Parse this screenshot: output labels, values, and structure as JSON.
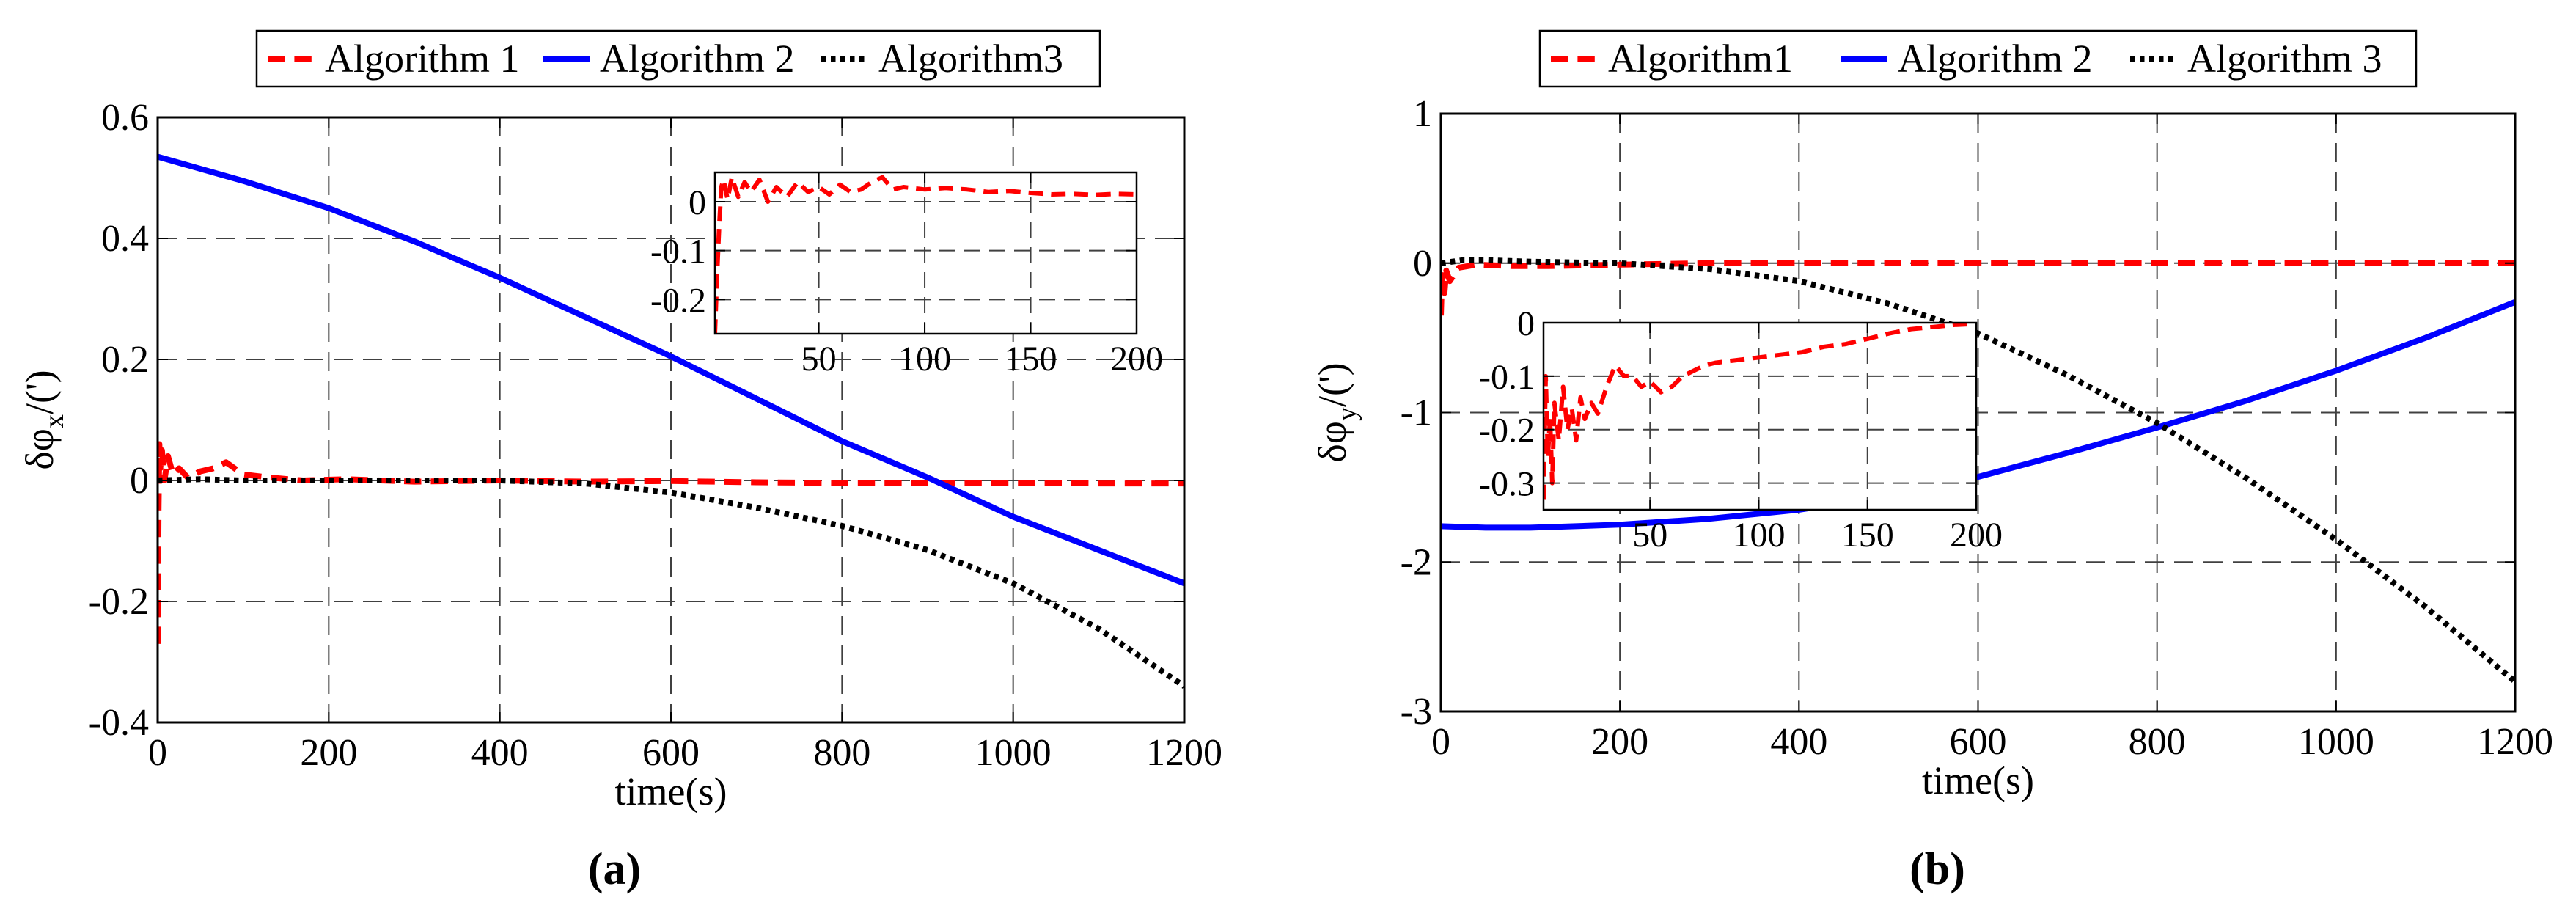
{
  "colors": {
    "alg1": "#ff0000",
    "alg2": "#0000ff",
    "alg3": "#000000",
    "grid": "#404040"
  },
  "panels": [
    {
      "label": "(a)"
    },
    {
      "label": "(b)"
    }
  ],
  "chart_data": [
    {
      "type": "line",
      "panel": "(a)",
      "title": "",
      "xlabel": "time(s)",
      "ylabel_main": "δφ",
      "ylabel_sub": "x",
      "ylabel_tail": "/(')",
      "xlim": [
        0,
        1200
      ],
      "ylim": [
        -0.4,
        0.6
      ],
      "xticks": [
        0,
        200,
        400,
        600,
        800,
        1000,
        1200
      ],
      "xtick_labels": [
        "0",
        "200",
        "400",
        "600",
        "800",
        "1000",
        "1200"
      ],
      "yticks": [
        -0.4,
        -0.2,
        0,
        0.2,
        0.4,
        0.6
      ],
      "ytick_labels": [
        "-0.4",
        "-0.2",
        "0",
        "0.2",
        "0.4",
        "0.6"
      ],
      "grid": true,
      "legend_position": "top-center",
      "series": [
        {
          "name": "Algorithm 1",
          "style": "dashed",
          "color": "#ff0000",
          "x": [
            0,
            1,
            2,
            3,
            5,
            8,
            12,
            18,
            25,
            35,
            50,
            65,
            80,
            100,
            130,
            170,
            220,
            300,
            400,
            500,
            600,
            700,
            800,
            900,
            1000,
            1100,
            1200
          ],
          "y": [
            -0.27,
            -0.05,
            0.06,
            0.02,
            0.05,
            0.0,
            0.04,
            0.01,
            0.02,
            0.005,
            0.015,
            0.02,
            0.03,
            0.01,
            0.005,
            0.0,
            0.002,
            -0.002,
            0.0,
            -0.002,
            -0.001,
            -0.003,
            -0.004,
            -0.004,
            -0.004,
            -0.005,
            -0.005
          ]
        },
        {
          "name": "Algorithm 2",
          "style": "solid",
          "color": "#0000ff",
          "x": [
            0,
            100,
            200,
            300,
            400,
            500,
            600,
            700,
            800,
            900,
            1000,
            1100,
            1200
          ],
          "y": [
            0.535,
            0.495,
            0.45,
            0.395,
            0.335,
            0.27,
            0.205,
            0.135,
            0.065,
            0.005,
            -0.06,
            -0.115,
            -0.17
          ]
        },
        {
          "name": "Algorithm3",
          "style": "dotted",
          "color": "#000000",
          "x": [
            0,
            50,
            100,
            200,
            300,
            400,
            500,
            600,
            700,
            800,
            900,
            1000,
            1100,
            1200
          ],
          "y": [
            0.0,
            0.002,
            0.0,
            0.0,
            0.0,
            0.0,
            -0.005,
            -0.02,
            -0.045,
            -0.075,
            -0.115,
            -0.17,
            -0.245,
            -0.34
          ]
        }
      ],
      "inset": {
        "xlim": [
          1,
          200
        ],
        "ylim": [
          -0.27,
          0.06
        ],
        "xticks": [
          50,
          100,
          150,
          200
        ],
        "xtick_labels": [
          "50",
          "100",
          "150",
          "200"
        ],
        "yticks": [
          0,
          -0.1,
          -0.2
        ],
        "ytick_labels": [
          "0",
          "-0.1",
          "-0.2"
        ],
        "series": [
          {
            "name": "Algorithm 1",
            "style": "dashed",
            "color": "#ff0000",
            "x": [
              1,
              2,
              3,
              4,
              5,
              7,
              9,
              12,
              15,
              18,
              22,
              26,
              30,
              35,
              40,
              45,
              50,
              55,
              60,
              65,
              70,
              75,
              80,
              85,
              90,
              100,
              110,
              120,
              130,
              140,
              150,
              160,
              170,
              180,
              190,
              200
            ],
            "y": [
              -0.27,
              -0.15,
              -0.05,
              0.03,
              0.045,
              0.005,
              0.05,
              0.01,
              0.04,
              0.02,
              0.045,
              0.0,
              0.03,
              0.01,
              0.04,
              0.02,
              0.03,
              0.015,
              0.035,
              0.02,
              0.025,
              0.04,
              0.05,
              0.025,
              0.03,
              0.025,
              0.028,
              0.025,
              0.02,
              0.022,
              0.018,
              0.015,
              0.016,
              0.014,
              0.016,
              0.015
            ]
          }
        ]
      }
    },
    {
      "type": "line",
      "panel": "(b)",
      "title": "",
      "xlabel": "time(s)",
      "ylabel_main": "δφ",
      "ylabel_sub": "y",
      "ylabel_tail": "/(')",
      "xlim": [
        0,
        1200
      ],
      "ylim": [
        -3,
        1
      ],
      "xticks": [
        0,
        200,
        400,
        600,
        800,
        1000,
        1200
      ],
      "xtick_labels": [
        "0",
        "200",
        "400",
        "600",
        "800",
        "1000",
        "1200"
      ],
      "yticks": [
        -3,
        -2,
        -1,
        0,
        1
      ],
      "ytick_labels": [
        "-3",
        "-2",
        "-1",
        "0",
        "1"
      ],
      "grid": true,
      "legend_position": "top-center",
      "series": [
        {
          "name": "Algorithm1",
          "style": "dashed",
          "color": "#ff0000",
          "x": [
            0,
            1,
            2,
            4,
            6,
            10,
            20,
            40,
            80,
            120,
            200,
            300,
            400,
            600,
            800,
            1000,
            1200
          ],
          "y": [
            -0.35,
            -0.15,
            -0.08,
            -0.2,
            -0.05,
            -0.12,
            -0.03,
            -0.01,
            -0.02,
            -0.02,
            -0.01,
            0.0,
            0.0,
            0.0,
            0.0,
            0.0,
            0.0
          ]
        },
        {
          "name": "Algorithm 2",
          "style": "solid",
          "color": "#0000ff",
          "x": [
            0,
            50,
            100,
            200,
            300,
            400,
            500,
            600,
            700,
            800,
            900,
            1000,
            1100,
            1200
          ],
          "y": [
            -1.76,
            -1.77,
            -1.77,
            -1.75,
            -1.71,
            -1.65,
            -1.56,
            -1.43,
            -1.27,
            -1.1,
            -0.92,
            -0.72,
            -0.5,
            -0.26
          ]
        },
        {
          "name": "Algorithm 3",
          "style": "dotted",
          "color": "#000000",
          "x": [
            0,
            25,
            50,
            100,
            200,
            300,
            400,
            500,
            600,
            700,
            800,
            900,
            1000,
            1100,
            1200
          ],
          "y": [
            0.0,
            0.02,
            0.02,
            0.01,
            0.0,
            -0.04,
            -0.12,
            -0.27,
            -0.47,
            -0.75,
            -1.07,
            -1.44,
            -1.85,
            -2.3,
            -2.8
          ]
        }
      ],
      "inset": {
        "xlim": [
          1,
          200
        ],
        "ylim": [
          -0.35,
          0.0
        ],
        "xticks": [
          50,
          100,
          150,
          200
        ],
        "xtick_labels": [
          "50",
          "100",
          "150",
          "200"
        ],
        "yticks": [
          0,
          -0.1,
          -0.2,
          -0.3
        ],
        "ytick_labels": [
          "0",
          "-0.1",
          "-0.2",
          "-0.3"
        ],
        "series": [
          {
            "name": "Algorithm1",
            "style": "dashed",
            "color": "#ff0000",
            "x": [
              1,
              2,
              3,
              4,
              5,
              6,
              8,
              10,
              12,
              14,
              16,
              18,
              20,
              23,
              26,
              30,
              34,
              38,
              42,
              46,
              50,
              55,
              60,
              65,
              70,
              75,
              80,
              90,
              100,
              110,
              120,
              130,
              140,
              150,
              160,
              170,
              180,
              190,
              200
            ],
            "y": [
              -0.33,
              -0.1,
              -0.25,
              -0.18,
              -0.3,
              -0.15,
              -0.22,
              -0.12,
              -0.2,
              -0.16,
              -0.22,
              -0.14,
              -0.18,
              -0.15,
              -0.17,
              -0.12,
              -0.08,
              -0.1,
              -0.1,
              -0.12,
              -0.11,
              -0.13,
              -0.12,
              -0.1,
              -0.09,
              -0.08,
              -0.075,
              -0.07,
              -0.065,
              -0.06,
              -0.055,
              -0.045,
              -0.04,
              -0.03,
              -0.02,
              -0.012,
              -0.008,
              -0.004,
              -0.002
            ]
          }
        ]
      }
    }
  ]
}
